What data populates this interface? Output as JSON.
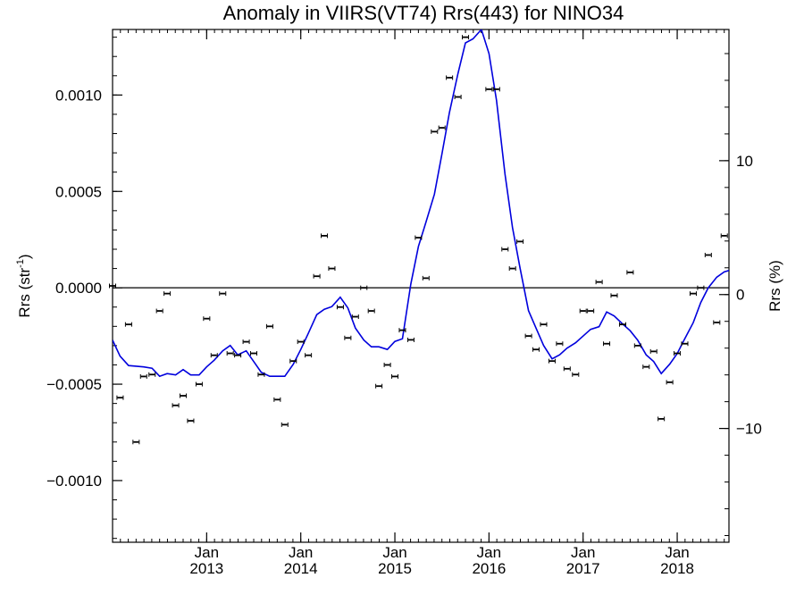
{
  "chart_data": {
    "type": "scatter",
    "title": "Anomaly in VIIRS(VT74) Rrs(443) for NINO34",
    "ylabel_left": "Rrs (str",
    "ylabel_left_sup": "-1",
    "ylabel_left_close": ")",
    "ylabel_right": "Rrs (%)",
    "xlim": [
      2012.0,
      2018.55
    ],
    "ylim": [
      -0.00132,
      0.00134
    ],
    "y2lim": [
      -18.5,
      19.8
    ],
    "y_ticks": [
      {
        "value": 0.001,
        "label": "0.0010"
      },
      {
        "value": 0.0005,
        "label": "0.0005"
      },
      {
        "value": 0.0,
        "label": "0.0000"
      },
      {
        "value": -0.0005,
        "label": "−0.0005"
      },
      {
        "value": -0.001,
        "label": "−0.0010"
      }
    ],
    "y2_ticks": [
      {
        "value": 10,
        "label": "10"
      },
      {
        "value": 0,
        "label": "0"
      },
      {
        "value": -10,
        "label": "−10"
      }
    ],
    "x_ticks": [
      {
        "value": 2013.0,
        "month": "Jan",
        "year": "2013"
      },
      {
        "value": 2014.0,
        "month": "Jan",
        "year": "2014"
      },
      {
        "value": 2015.0,
        "month": "Jan",
        "year": "2015"
      },
      {
        "value": 2016.0,
        "month": "Jan",
        "year": "2016"
      },
      {
        "value": 2017.0,
        "month": "Jan",
        "year": "2017"
      },
      {
        "value": 2018.0,
        "month": "Jan",
        "year": "2018"
      }
    ],
    "reference_line": 0,
    "colors": {
      "line": "#0000dd",
      "points": "#000000",
      "axis": "#000000"
    },
    "series": [
      {
        "type": "scatter_errorbars",
        "points": [
          {
            "x": 2012.0,
            "y": 1e-05
          },
          {
            "x": 2012.08,
            "y": -0.00057
          },
          {
            "x": 2012.17,
            "y": -0.00019
          },
          {
            "x": 2012.25,
            "y": -0.0008
          },
          {
            "x": 2012.33,
            "y": -0.00046
          },
          {
            "x": 2012.42,
            "y": -0.00045
          },
          {
            "x": 2012.5,
            "y": -0.00012
          },
          {
            "x": 2012.58,
            "y": -3e-05
          },
          {
            "x": 2012.67,
            "y": -0.00061
          },
          {
            "x": 2012.75,
            "y": -0.00056
          },
          {
            "x": 2012.83,
            "y": -0.00069
          },
          {
            "x": 2012.92,
            "y": -0.0005
          },
          {
            "x": 2013.0,
            "y": -0.00016
          },
          {
            "x": 2013.08,
            "y": -0.00035
          },
          {
            "x": 2013.17,
            "y": -3e-05
          },
          {
            "x": 2013.25,
            "y": -0.00034
          },
          {
            "x": 2013.33,
            "y": -0.00035
          },
          {
            "x": 2013.42,
            "y": -0.00028
          },
          {
            "x": 2013.5,
            "y": -0.00034
          },
          {
            "x": 2013.58,
            "y": -0.00045
          },
          {
            "x": 2013.67,
            "y": -0.0002
          },
          {
            "x": 2013.75,
            "y": -0.00058
          },
          {
            "x": 2013.83,
            "y": -0.00071
          },
          {
            "x": 2013.92,
            "y": -0.00038
          },
          {
            "x": 2014.0,
            "y": -0.00028
          },
          {
            "x": 2014.08,
            "y": -0.00035
          },
          {
            "x": 2014.17,
            "y": 6e-05
          },
          {
            "x": 2014.25,
            "y": 0.00027
          },
          {
            "x": 2014.33,
            "y": 0.0001
          },
          {
            "x": 2014.42,
            "y": -0.0001
          },
          {
            "x": 2014.5,
            "y": -0.00026
          },
          {
            "x": 2014.58,
            "y": -0.00015
          },
          {
            "x": 2014.67,
            "y": 0.0
          },
          {
            "x": 2014.75,
            "y": -0.00012
          },
          {
            "x": 2014.83,
            "y": -0.00051
          },
          {
            "x": 2014.92,
            "y": -0.0004
          },
          {
            "x": 2015.0,
            "y": -0.00046
          },
          {
            "x": 2015.08,
            "y": -0.00022
          },
          {
            "x": 2015.17,
            "y": -0.00027
          },
          {
            "x": 2015.25,
            "y": 0.00026
          },
          {
            "x": 2015.33,
            "y": 5e-05
          },
          {
            "x": 2015.42,
            "y": 0.00081
          },
          {
            "x": 2015.5,
            "y": 0.00083
          },
          {
            "x": 2015.58,
            "y": 0.00109
          },
          {
            "x": 2015.67,
            "y": 0.00099
          },
          {
            "x": 2015.75,
            "y": 0.0013
          },
          {
            "x": 2016.0,
            "y": 0.00103
          },
          {
            "x": 2016.08,
            "y": 0.00103
          },
          {
            "x": 2016.17,
            "y": 0.0002
          },
          {
            "x": 2016.25,
            "y": 0.0001
          },
          {
            "x": 2016.33,
            "y": 0.00024
          },
          {
            "x": 2016.42,
            "y": -0.00025
          },
          {
            "x": 2016.5,
            "y": -0.00032
          },
          {
            "x": 2016.58,
            "y": -0.00019
          },
          {
            "x": 2016.67,
            "y": -0.00038
          },
          {
            "x": 2016.75,
            "y": -0.00029
          },
          {
            "x": 2016.83,
            "y": -0.00042
          },
          {
            "x": 2016.92,
            "y": -0.00045
          },
          {
            "x": 2017.0,
            "y": -0.00012
          },
          {
            "x": 2017.08,
            "y": -0.00012
          },
          {
            "x": 2017.17,
            "y": 3e-05
          },
          {
            "x": 2017.25,
            "y": -0.00029
          },
          {
            "x": 2017.33,
            "y": -4e-05
          },
          {
            "x": 2017.42,
            "y": -0.00019
          },
          {
            "x": 2017.5,
            "y": 8e-05
          },
          {
            "x": 2017.58,
            "y": -0.0003
          },
          {
            "x": 2017.67,
            "y": -0.00041
          },
          {
            "x": 2017.75,
            "y": -0.00033
          },
          {
            "x": 2017.83,
            "y": -0.00068
          },
          {
            "x": 2017.92,
            "y": -0.00049
          },
          {
            "x": 2018.0,
            "y": -0.00034
          },
          {
            "x": 2018.08,
            "y": -0.00029
          },
          {
            "x": 2018.17,
            "y": -3e-05
          },
          {
            "x": 2018.25,
            "y": 0.0
          },
          {
            "x": 2018.33,
            "y": 0.00017
          },
          {
            "x": 2018.42,
            "y": -0.00018
          },
          {
            "x": 2018.5,
            "y": 0.00027
          }
        ]
      },
      {
        "type": "line",
        "axis": "right",
        "points": [
          {
            "x": 2012.0,
            "y": -3.4
          },
          {
            "x": 2012.08,
            "y": -4.6
          },
          {
            "x": 2012.17,
            "y": -5.3
          },
          {
            "x": 2012.33,
            "y": -5.4
          },
          {
            "x": 2012.42,
            "y": -5.5
          },
          {
            "x": 2012.5,
            "y": -6.1
          },
          {
            "x": 2012.58,
            "y": -5.9
          },
          {
            "x": 2012.67,
            "y": -6.0
          },
          {
            "x": 2012.75,
            "y": -5.6
          },
          {
            "x": 2012.83,
            "y": -6.0
          },
          {
            "x": 2012.92,
            "y": -6.0
          },
          {
            "x": 2013.0,
            "y": -5.4
          },
          {
            "x": 2013.08,
            "y": -4.9
          },
          {
            "x": 2013.17,
            "y": -4.2
          },
          {
            "x": 2013.25,
            "y": -3.8
          },
          {
            "x": 2013.33,
            "y": -4.5
          },
          {
            "x": 2013.42,
            "y": -4.2
          },
          {
            "x": 2013.5,
            "y": -5.0
          },
          {
            "x": 2013.58,
            "y": -5.8
          },
          {
            "x": 2013.67,
            "y": -6.1
          },
          {
            "x": 2013.83,
            "y": -6.1
          },
          {
            "x": 2013.92,
            "y": -5.2
          },
          {
            "x": 2014.0,
            "y": -4.1
          },
          {
            "x": 2014.08,
            "y": -2.9
          },
          {
            "x": 2014.17,
            "y": -1.5
          },
          {
            "x": 2014.25,
            "y": -1.1
          },
          {
            "x": 2014.33,
            "y": -0.9
          },
          {
            "x": 2014.42,
            "y": -0.2
          },
          {
            "x": 2014.5,
            "y": -1.0
          },
          {
            "x": 2014.58,
            "y": -2.5
          },
          {
            "x": 2014.67,
            "y": -3.4
          },
          {
            "x": 2014.75,
            "y": -3.9
          },
          {
            "x": 2014.83,
            "y": -3.9
          },
          {
            "x": 2014.92,
            "y": -4.1
          },
          {
            "x": 2015.0,
            "y": -3.5
          },
          {
            "x": 2015.08,
            "y": -3.3
          },
          {
            "x": 2015.17,
            "y": 0.8
          },
          {
            "x": 2015.25,
            "y": 3.6
          },
          {
            "x": 2015.33,
            "y": 5.4
          },
          {
            "x": 2015.42,
            "y": 7.5
          },
          {
            "x": 2015.5,
            "y": 10.5
          },
          {
            "x": 2015.58,
            "y": 13.6
          },
          {
            "x": 2015.67,
            "y": 16.5
          },
          {
            "x": 2015.75,
            "y": 18.8
          },
          {
            "x": 2015.83,
            "y": 19.1
          },
          {
            "x": 2015.92,
            "y": 19.8
          },
          {
            "x": 2016.0,
            "y": 18.0
          },
          {
            "x": 2016.08,
            "y": 14.5
          },
          {
            "x": 2016.17,
            "y": 9.0
          },
          {
            "x": 2016.25,
            "y": 5.0
          },
          {
            "x": 2016.33,
            "y": 2.0
          },
          {
            "x": 2016.42,
            "y": -1.2
          },
          {
            "x": 2016.5,
            "y": -2.5
          },
          {
            "x": 2016.58,
            "y": -3.8
          },
          {
            "x": 2016.67,
            "y": -4.8
          },
          {
            "x": 2016.75,
            "y": -4.5
          },
          {
            "x": 2016.83,
            "y": -4.0
          },
          {
            "x": 2016.92,
            "y": -3.6
          },
          {
            "x": 2017.0,
            "y": -3.1
          },
          {
            "x": 2017.08,
            "y": -2.6
          },
          {
            "x": 2017.17,
            "y": -2.4
          },
          {
            "x": 2017.25,
            "y": -1.3
          },
          {
            "x": 2017.33,
            "y": -1.6
          },
          {
            "x": 2017.42,
            "y": -2.2
          },
          {
            "x": 2017.5,
            "y": -2.7
          },
          {
            "x": 2017.58,
            "y": -3.4
          },
          {
            "x": 2017.67,
            "y": -4.5
          },
          {
            "x": 2017.75,
            "y": -5.0
          },
          {
            "x": 2017.83,
            "y": -5.9
          },
          {
            "x": 2017.92,
            "y": -5.2
          },
          {
            "x": 2018.0,
            "y": -4.4
          },
          {
            "x": 2018.08,
            "y": -3.3
          },
          {
            "x": 2018.17,
            "y": -2.1
          },
          {
            "x": 2018.25,
            "y": -0.6
          },
          {
            "x": 2018.33,
            "y": 0.5
          },
          {
            "x": 2018.42,
            "y": 1.3
          },
          {
            "x": 2018.5,
            "y": 1.7
          },
          {
            "x": 2018.55,
            "y": 1.8
          }
        ]
      }
    ]
  }
}
